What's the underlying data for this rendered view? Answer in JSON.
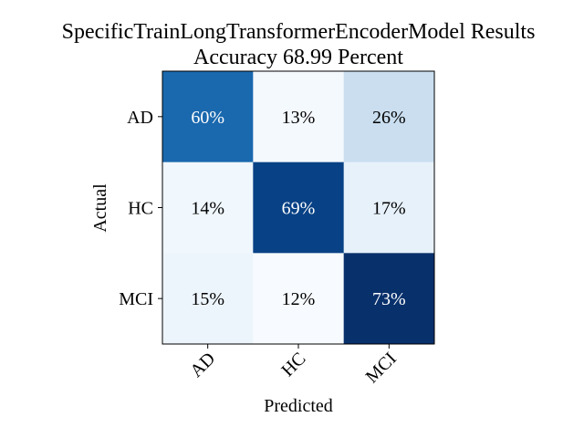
{
  "chart_data": {
    "type": "heatmap",
    "title": "SpecificTrainLongTransformerEncoderModel Results",
    "subtitle": "Accuracy 68.99 Percent",
    "xlabel": "Predicted",
    "ylabel": "Actual",
    "x_categories": [
      "AD",
      "HC",
      "MCI"
    ],
    "y_categories": [
      "AD",
      "HC",
      "MCI"
    ],
    "values": [
      [
        60,
        13,
        26
      ],
      [
        14,
        69,
        17
      ],
      [
        15,
        12,
        73
      ]
    ],
    "cell_labels": [
      [
        "60%",
        "13%",
        "26%"
      ],
      [
        "14%",
        "69%",
        "17%"
      ],
      [
        "15%",
        "12%",
        "73%"
      ]
    ],
    "value_unit": "percent",
    "colormap": "Blues",
    "grid": false,
    "legend": "none"
  }
}
